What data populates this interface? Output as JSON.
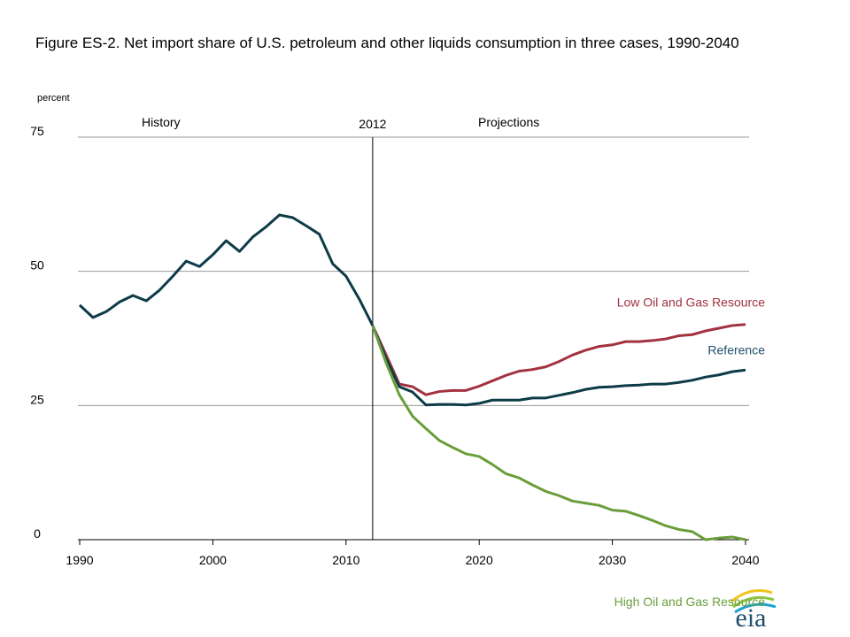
{
  "chart_data": {
    "type": "line",
    "title": "Figure ES-2. Net import share of U.S. petroleum and other liquids consumption in three cases, 1990-2040",
    "y_label": "percent",
    "history_label": "History",
    "projection_label": "Projections",
    "divider": 2012,
    "x": [
      1990,
      1991,
      1992,
      1993,
      1994,
      1995,
      1996,
      1997,
      1998,
      1999,
      2000,
      2001,
      2002,
      2003,
      2004,
      2005,
      2006,
      2007,
      2008,
      2009,
      2010,
      2011,
      2012,
      2013,
      2014,
      2015,
      2016,
      2017,
      2018,
      2019,
      2020,
      2021,
      2022,
      2023,
      2024,
      2025,
      2026,
      2027,
      2028,
      2029,
      2030,
      2031,
      2032,
      2033,
      2034,
      2035,
      2036,
      2037,
      2038,
      2039,
      2040
    ],
    "series": [
      {
        "name": "Low Oil and Gas Resource",
        "color": "#a2323f",
        "values": [
          null,
          null,
          null,
          null,
          null,
          null,
          null,
          null,
          null,
          null,
          null,
          null,
          null,
          null,
          null,
          null,
          null,
          null,
          null,
          null,
          null,
          null,
          39.9,
          34.5,
          29.0,
          28.5,
          27.0,
          27.6,
          27.8,
          27.8,
          28.6,
          29.6,
          30.6,
          31.4,
          31.7,
          32.2,
          33.2,
          34.4,
          35.3,
          36.0,
          36.3,
          36.9,
          36.9,
          37.1,
          37.4,
          38.0,
          38.2,
          38.9,
          39.4,
          39.9,
          40.1
        ]
      },
      {
        "name": "Reference",
        "color": "#0d3b47",
        "values": [
          43.7,
          41.4,
          42.5,
          44.3,
          45.5,
          44.5,
          46.5,
          49.1,
          51.9,
          50.9,
          53.1,
          55.7,
          53.7,
          56.4,
          58.3,
          60.5,
          60.0,
          58.5,
          56.9,
          51.4,
          49.1,
          44.8,
          39.9,
          33.8,
          28.5,
          27.5,
          25.1,
          25.2,
          25.2,
          25.1,
          25.4,
          26.0,
          26.0,
          26.0,
          26.4,
          26.4,
          26.9,
          27.4,
          28.0,
          28.4,
          28.5,
          28.7,
          28.8,
          29.0,
          29.0,
          29.3,
          29.7,
          30.3,
          30.7,
          31.3,
          31.6
        ]
      },
      {
        "name": "High Oil and Gas Resource",
        "color": "#6a9e3a",
        "values": [
          null,
          null,
          null,
          null,
          null,
          null,
          null,
          null,
          null,
          null,
          null,
          null,
          null,
          null,
          null,
          null,
          null,
          null,
          null,
          null,
          null,
          null,
          39.9,
          33.0,
          27.0,
          23.0,
          20.7,
          18.5,
          17.2,
          16.0,
          15.5,
          14.0,
          12.3,
          11.5,
          10.2,
          9.0,
          8.2,
          7.2,
          6.8,
          6.4,
          5.5,
          5.3,
          4.5,
          3.6,
          2.6,
          1.9,
          1.5,
          0,
          0.3,
          0.5,
          0
        ]
      }
    ],
    "xlim": [
      1990,
      2040
    ],
    "xticks": [
      1990,
      2000,
      2010,
      2020,
      2030,
      2040
    ],
    "ylim": [
      0,
      75
    ],
    "yticks": [
      0,
      25,
      50,
      75
    ],
    "grid": true
  },
  "logo": "eia"
}
